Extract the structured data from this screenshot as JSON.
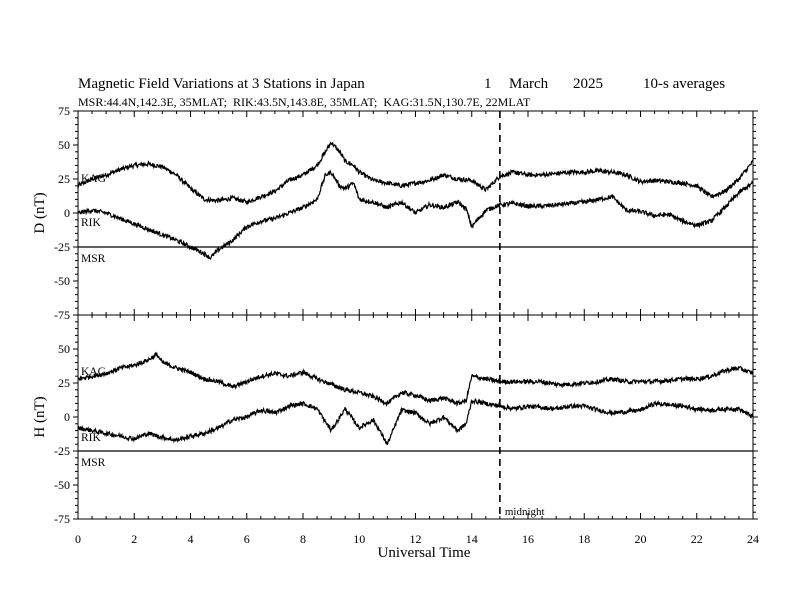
{
  "chart_data": {
    "type": "line",
    "title": "Magnetic Field Variations at 3 Stations in Japan",
    "date_day": "1",
    "date_month": "March",
    "date_year": "2025",
    "averaging": "10-s averages",
    "stations_line": "MSR:44.4N,142.3E, 35MLAT;  RIK:43.5N,143.8E, 35MLAT;  KAG:31.5N,130.7E, 22MLAT",
    "xlabel": "Universal Time",
    "xlim": [
      0,
      24
    ],
    "xticks": [
      "0",
      "2",
      "4",
      "6",
      "8",
      "10",
      "12",
      "14",
      "16",
      "18",
      "20",
      "22",
      "24"
    ],
    "midnight_label": "midnight",
    "midnight_ut": 15,
    "panels": [
      {
        "ylabel": "D (nT)",
        "ylim": [
          -75,
          75
        ],
        "yticks": [
          "75",
          "50",
          "25",
          "0",
          "-25",
          "-50",
          "-75"
        ],
        "series": [
          {
            "name": "KAG",
            "x": [
              0,
              0.5,
              1,
              1.5,
              2,
              2.5,
              3,
              3.5,
              4,
              4.5,
              5,
              5.5,
              6,
              6.5,
              7,
              7.5,
              8,
              8.5,
              8.8,
              9,
              9.3,
              9.5,
              9.8,
              10,
              10.5,
              11,
              11.5,
              12,
              12.5,
              13,
              13.5,
              14,
              14.5,
              15,
              15.5,
              16,
              16.5,
              17,
              17.5,
              18,
              18.5,
              19,
              19.5,
              20,
              20.5,
              21,
              21.5,
              22,
              22.5,
              23,
              23.5,
              24
            ],
            "values": [
              20,
              25,
              28,
              32,
              35,
              36,
              34,
              28,
              18,
              10,
              9,
              11,
              8,
              12,
              16,
              24,
              28,
              35,
              45,
              52,
              45,
              38,
              35,
              30,
              24,
              22,
              20,
              22,
              24,
              28,
              25,
              24,
              17,
              27,
              30,
              28,
              28,
              29,
              30,
              30,
              31,
              30,
              28,
              23,
              24,
              23,
              22,
              20,
              12,
              16,
              25,
              38
            ]
          },
          {
            "name": "RIK",
            "x": [
              0,
              0.5,
              1,
              1.5,
              2,
              2.5,
              3,
              3.5,
              4,
              4.5,
              4.7,
              5,
              5.5,
              6,
              6.5,
              7,
              7.5,
              8,
              8.5,
              8.8,
              9,
              9.3,
              9.5,
              9.8,
              10,
              10.5,
              11,
              11.5,
              12,
              12.5,
              13,
              13.5,
              13.8,
              14,
              14.5,
              15,
              15.5,
              16,
              16.5,
              17,
              17.5,
              18,
              18.5,
              19,
              19.5,
              20,
              20.5,
              21,
              21.5,
              22,
              22.5,
              23,
              23.5,
              24
            ],
            "values": [
              0,
              2,
              0,
              -4,
              -8,
              -12,
              -16,
              -20,
              -25,
              -30,
              -33,
              -27,
              -20,
              -10,
              -6,
              -4,
              0,
              4,
              10,
              28,
              30,
              20,
              18,
              22,
              10,
              8,
              4,
              8,
              0,
              6,
              4,
              8,
              3,
              -10,
              2,
              6,
              7,
              5,
              5,
              6,
              7,
              8,
              10,
              12,
              2,
              1,
              -2,
              -1,
              -6,
              -9,
              -6,
              4,
              15,
              22
            ]
          },
          {
            "name": "MSR",
            "x": [
              0,
              24
            ],
            "values": [
              -25,
              -25
            ]
          }
        ]
      },
      {
        "ylabel": "H (nT)",
        "ylim": [
          -75,
          75
        ],
        "yticks": [
          "75",
          "50",
          "25",
          "0",
          "-25",
          "-50",
          "-75"
        ],
        "series": [
          {
            "name": "KAG",
            "x": [
              0,
              0.5,
              1,
              1.5,
              2,
              2.5,
              2.8,
              3,
              3.5,
              4,
              4.5,
              5,
              5.5,
              6,
              6.5,
              7,
              7.5,
              8,
              8.5,
              9,
              9.5,
              10,
              10.5,
              11,
              11.5,
              12,
              12.5,
              13,
              13.5,
              13.8,
              14,
              14.5,
              15,
              15.5,
              16,
              16.5,
              17,
              17.5,
              18,
              18.5,
              19,
              19.5,
              20,
              20.5,
              21,
              21.5,
              22,
              22.5,
              23,
              23.5,
              24
            ],
            "values": [
              28,
              30,
              32,
              36,
              38,
              42,
              46,
              40,
              36,
              33,
              28,
              26,
              22,
              26,
              30,
              32,
              30,
              33,
              28,
              24,
              20,
              18,
              15,
              10,
              18,
              16,
              12,
              14,
              10,
              12,
              30,
              28,
              26,
              26,
              26,
              26,
              24,
              24,
              25,
              26,
              28,
              26,
              26,
              26,
              27,
              28,
              28,
              30,
              34,
              36,
              32
            ]
          },
          {
            "name": "RIK",
            "x": [
              0,
              0.5,
              1,
              1.5,
              2,
              2.5,
              3,
              3.5,
              4,
              4.5,
              5,
              5.5,
              6,
              6.5,
              7,
              7.5,
              8,
              8.5,
              9,
              9.5,
              10,
              10.5,
              11,
              11.5,
              12,
              12.5,
              13,
              13.5,
              13.8,
              14,
              14.5,
              15,
              15.5,
              16,
              16.5,
              17,
              17.5,
              18,
              18.5,
              19,
              19.5,
              20,
              20.5,
              21,
              21.5,
              22,
              22.5,
              23,
              23.5,
              24
            ],
            "values": [
              -8,
              -10,
              -12,
              -14,
              -16,
              -12,
              -15,
              -17,
              -14,
              -12,
              -8,
              -2,
              0,
              5,
              3,
              8,
              10,
              6,
              -10,
              6,
              -8,
              -2,
              -20,
              5,
              3,
              -5,
              0,
              -10,
              -5,
              12,
              10,
              8,
              6,
              8,
              7,
              6,
              8,
              8,
              5,
              3,
              4,
              5,
              10,
              9,
              8,
              6,
              5,
              6,
              6,
              0
            ]
          },
          {
            "name": "MSR",
            "x": [
              0,
              24
            ],
            "values": [
              -25,
              -25
            ]
          }
        ]
      }
    ],
    "grid": false
  }
}
